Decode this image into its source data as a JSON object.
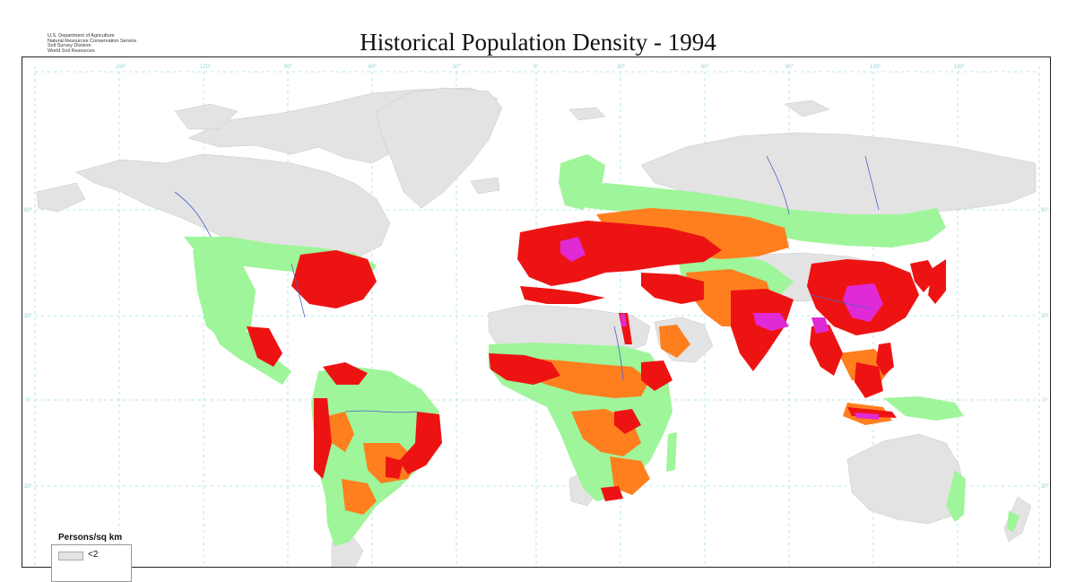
{
  "agency_lines": [
    "U.S. Department of Agriculture",
    "Natural Resources Conservation Service",
    "Soil Survey Division",
    "World Soil Resources"
  ],
  "title": "Historical Population Density - 1994",
  "longitude_labels": [
    "150°",
    "120°",
    "90°",
    "60°",
    "30°",
    "0°",
    "30°",
    "60°",
    "90°",
    "120°",
    "150°"
  ],
  "latitude_labels": [
    "60°",
    "30°",
    "0°",
    "30°"
  ],
  "legend": {
    "title": "Persons/sq km",
    "items": [
      {
        "label": "<2",
        "color": "#e3e3e3"
      }
    ]
  },
  "colors": {
    "very_low": "#e3e3e3",
    "low": "#9ff59a",
    "medium": "#ff7f1e",
    "high": "#ee1313",
    "very_high": "#e02ad6",
    "graticule": "#9adfe4",
    "rivers": "#4a5fd0"
  }
}
